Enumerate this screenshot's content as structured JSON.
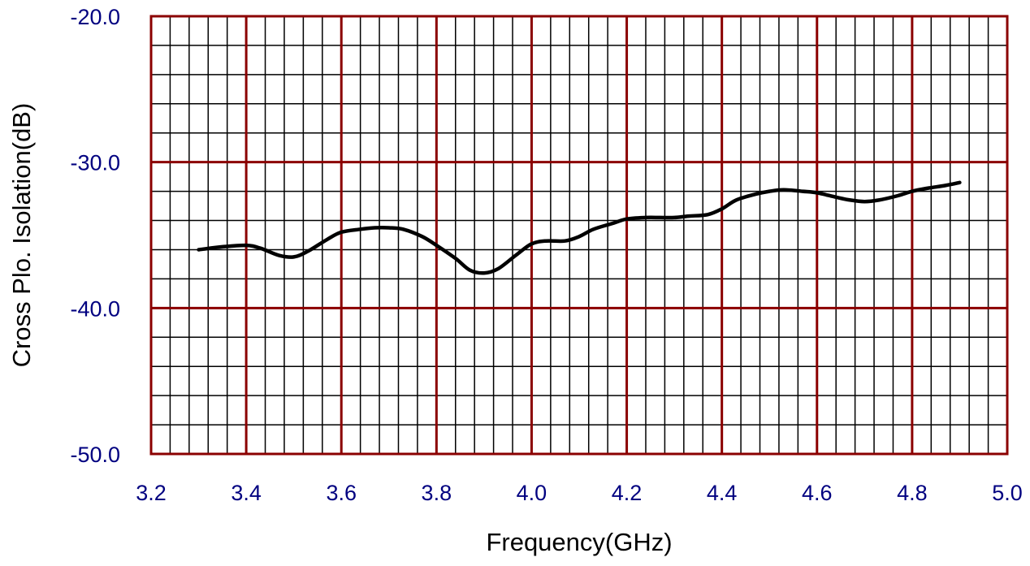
{
  "chart_data": {
    "type": "line",
    "xlabel": "Frequency(GHz)",
    "ylabel": "Cross Plo. Isolation(dB)",
    "xlim": [
      3.2,
      5.0
    ],
    "ylim": [
      -50.0,
      -20.0
    ],
    "x_ticks": [
      "3.2",
      "3.4",
      "3.6",
      "3.8",
      "4.0",
      "4.2",
      "4.4",
      "4.6",
      "4.8",
      "5.0"
    ],
    "y_ticks": [
      "-20.0",
      "-30.0",
      "-40.0",
      "-50.0"
    ],
    "grid": true,
    "series": [
      {
        "x": [
          3.3,
          3.35,
          3.4,
          3.43,
          3.47,
          3.5,
          3.53,
          3.57,
          3.6,
          3.64,
          3.67,
          3.7,
          3.73,
          3.77,
          3.8,
          3.84,
          3.87,
          3.9,
          3.93,
          3.97,
          4.0,
          4.03,
          4.07,
          4.1,
          4.13,
          4.17,
          4.2,
          4.24,
          4.27,
          4.3,
          4.33,
          4.37,
          4.4,
          4.43,
          4.47,
          4.5,
          4.53,
          4.57,
          4.6,
          4.64,
          4.67,
          4.7,
          4.73,
          4.77,
          4.8,
          4.83,
          4.87,
          4.9
        ],
        "values": [
          -36.0,
          -35.8,
          -35.7,
          -35.9,
          -36.4,
          -36.5,
          -36.1,
          -35.3,
          -34.8,
          -34.6,
          -34.5,
          -34.5,
          -34.6,
          -35.1,
          -35.7,
          -36.6,
          -37.4,
          -37.6,
          -37.3,
          -36.3,
          -35.6,
          -35.4,
          -35.4,
          -35.1,
          -34.6,
          -34.2,
          -33.9,
          -33.8,
          -33.8,
          -33.8,
          -33.7,
          -33.6,
          -33.2,
          -32.6,
          -32.2,
          -32.0,
          -31.9,
          -32.0,
          -32.1,
          -32.4,
          -32.6,
          -32.7,
          -32.6,
          -32.3,
          -32.0,
          -31.8,
          -31.6,
          -31.4
        ]
      }
    ]
  },
  "colors": {
    "major_grid": "#8b0000",
    "minor_grid": "#000000",
    "line": "#000000",
    "tick_label": "#000080",
    "axis_title": "#000000",
    "background": "#ffffff"
  }
}
